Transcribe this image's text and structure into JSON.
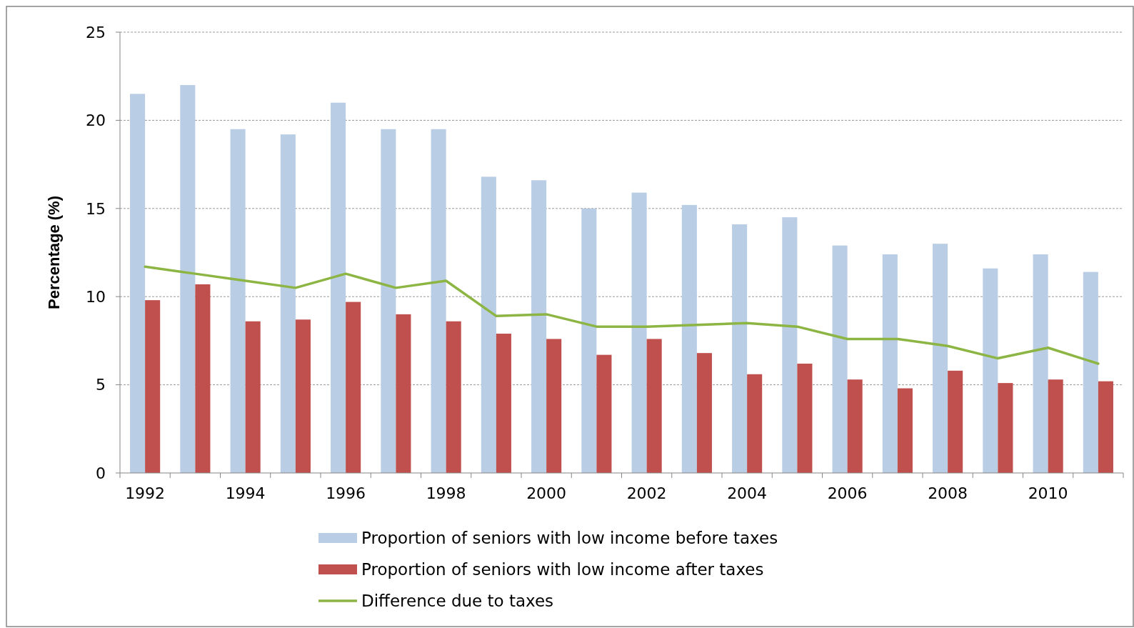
{
  "chart_data": {
    "type": "bar",
    "ylabel": "Percentage (%)",
    "categories": [
      "1992",
      null,
      "1994",
      null,
      "1996",
      null,
      "1998",
      null,
      "2000",
      null,
      "2002",
      null,
      "2004",
      null,
      "2006",
      null,
      "2008",
      null,
      "2010",
      null
    ],
    "series": [
      {
        "name": "Proportion of seniors with low income before taxes",
        "color": "#b9cde5",
        "values": [
          21.5,
          22,
          19.5,
          19.2,
          21,
          19.5,
          19.5,
          16.8,
          16.6,
          15,
          15.9,
          15.2,
          14.1,
          14.5,
          12.9,
          12.4,
          13,
          11.6,
          12.4,
          11.4
        ]
      },
      {
        "name": "Proportion of seniors with low income after taxes",
        "color": "#c0504d",
        "values": [
          9.8,
          10.7,
          8.6,
          8.7,
          9.7,
          9,
          8.6,
          7.9,
          7.6,
          6.7,
          7.6,
          6.8,
          5.6,
          6.2,
          5.3,
          4.8,
          5.8,
          5.1,
          5.3,
          5.2
        ]
      },
      {
        "name": "Difference due to taxes",
        "type": "line",
        "color": "#8db543",
        "values": [
          11.7,
          11.3,
          10.9,
          10.5,
          11.3,
          10.5,
          10.9,
          8.9,
          9,
          8.3,
          8.3,
          8.4,
          8.5,
          8.3,
          7.6,
          7.6,
          7.2,
          6.5,
          7.1,
          6.2
        ]
      }
    ],
    "ylim": [
      0,
      25
    ],
    "yticks": [
      0,
      5,
      10,
      15,
      20,
      25
    ],
    "grid": "y",
    "legend": "bottom"
  }
}
